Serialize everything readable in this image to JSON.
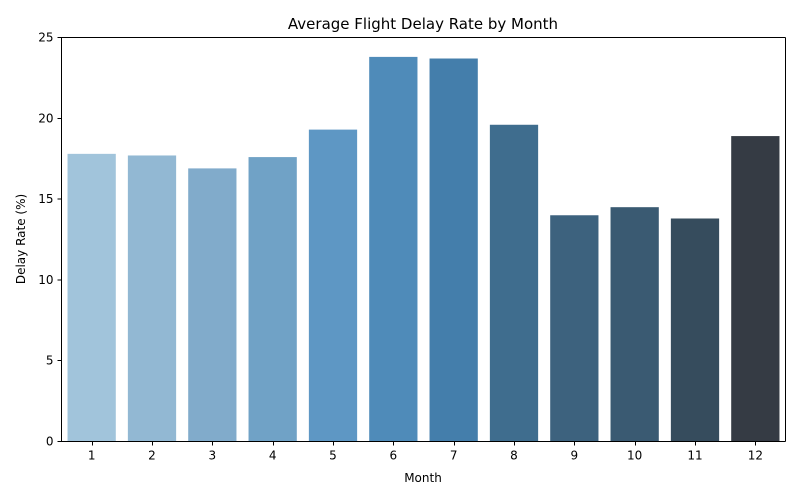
{
  "chart_data": {
    "type": "bar",
    "title": "Average Flight Delay Rate by Month",
    "xlabel": "Month",
    "ylabel": "Delay Rate (%)",
    "categories": [
      "1",
      "2",
      "3",
      "4",
      "5",
      "6",
      "7",
      "8",
      "9",
      "10",
      "11",
      "12"
    ],
    "values": [
      17.8,
      17.7,
      16.9,
      17.6,
      19.3,
      23.8,
      23.7,
      19.6,
      14.0,
      14.5,
      13.8,
      18.9
    ],
    "colors": [
      "#a1c4db",
      "#92b8d3",
      "#81abcb",
      "#70a2c6",
      "#5e97c4",
      "#4f8bb9",
      "#447eab",
      "#3f6d8e",
      "#3d627e",
      "#3a5a72",
      "#364c5d",
      "#353b44"
    ],
    "ylim": [
      0,
      25
    ],
    "yticks": [
      0,
      5,
      10,
      15,
      20,
      25
    ],
    "grid": false,
    "legend": "none"
  }
}
